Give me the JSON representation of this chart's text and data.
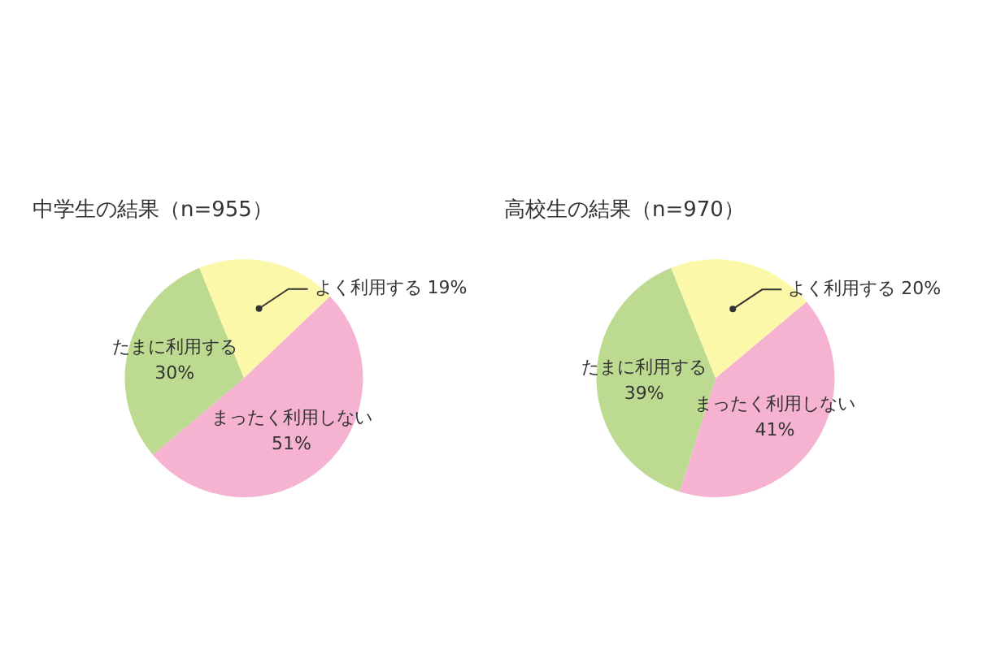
{
  "chart_data": [
    {
      "type": "pie",
      "title": "中学生の結果（n=955）",
      "categories": [
        "よく利用する",
        "まったく利用しない",
        "たまに利用する"
      ],
      "values": [
        19,
        51,
        30
      ],
      "value_labels": [
        "19%",
        "51%",
        "30%"
      ],
      "colors": [
        "#fcf8aa",
        "#f5b3d1",
        "#bddb90"
      ]
    },
    {
      "type": "pie",
      "title": "高校生の結果（n=970）",
      "categories": [
        "よく利用する",
        "まったく利用しない",
        "たまに利用する"
      ],
      "values": [
        20,
        41,
        39
      ],
      "value_labels": [
        "20%",
        "41%",
        "39%"
      ],
      "colors": [
        "#fcf8aa",
        "#f5b3d1",
        "#bddb90"
      ]
    }
  ]
}
